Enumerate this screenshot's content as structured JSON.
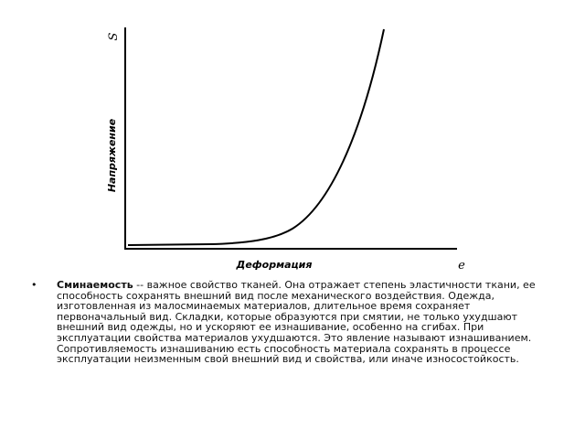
{
  "figure": {
    "y_axis_symbol": "S",
    "y_axis_label": "Напряжение",
    "x_axis_label": "Деформация",
    "x_axis_symbol": "e"
  },
  "bullet": {
    "term": "Сминаемость",
    "text": " -- важное свойство тканей. Она отражает степень эластичности ткани, ее способность сохранять внешний вид после механического воздействия. Одежда, изготовленная из малосминаемых материалов, длительное время сохраняет первоначальный вид. Складки, которые образуются при смятии, не только ухудшают внешний вид одежды, но и ускоряют ее изнашивание, особенно на сгибах. При эксплуатации свойства материалов ухудшаются. Это явление называют изнашиванием. Сопротивляемость изнашиванию есть способность материала сохранять в процессе эксплуатации неизменным свой внешний вид и свойства, или иначе износостойкость."
  }
}
